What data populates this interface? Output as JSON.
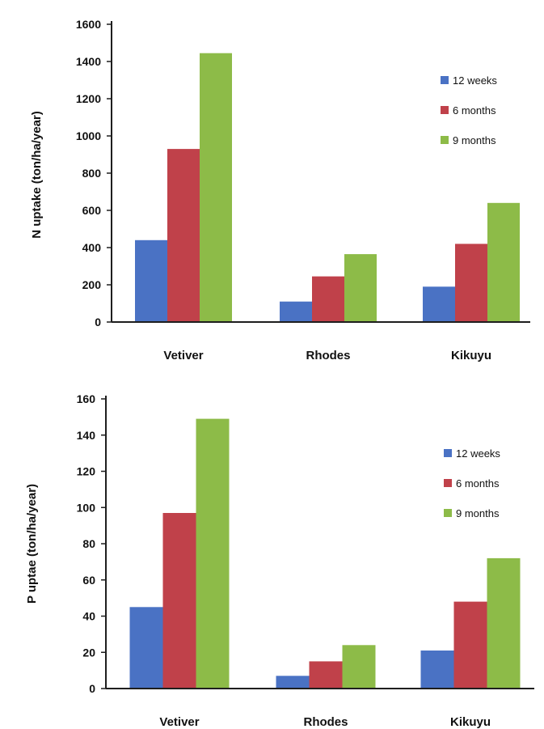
{
  "colors": {
    "series": [
      "#4a72c4",
      "#c0414a",
      "#8dbb48"
    ],
    "axis": "#1e1e1e",
    "text": "#111111"
  },
  "chart_data": [
    {
      "type": "bar",
      "title": "",
      "xlabel": "",
      "ylabel": "N uptake (ton/ha/year)",
      "categories": [
        "Vetiver",
        "Rhodes",
        "Kikuyu"
      ],
      "ylim": [
        0,
        1600
      ],
      "yticks": [
        0,
        200,
        400,
        600,
        800,
        1000,
        1200,
        1400,
        1600
      ],
      "grid": false,
      "legend_position": "right",
      "series": [
        {
          "name": "12 weeks",
          "values": [
            440,
            110,
            190
          ]
        },
        {
          "name": "6 months",
          "values": [
            930,
            245,
            420
          ]
        },
        {
          "name": "9 months",
          "values": [
            1445,
            365,
            640
          ]
        }
      ]
    },
    {
      "type": "bar",
      "title": "",
      "xlabel": "",
      "ylabel": "P uptae (ton/ha/year)",
      "categories": [
        "Vetiver",
        "Rhodes",
        "Kikuyu"
      ],
      "ylim": [
        0,
        160
      ],
      "yticks": [
        0,
        20,
        40,
        60,
        80,
        100,
        120,
        140,
        160
      ],
      "grid": false,
      "legend_position": "right",
      "series": [
        {
          "name": "12 weeks",
          "values": [
            45,
            7,
            21
          ]
        },
        {
          "name": "6 months",
          "values": [
            97,
            15,
            48
          ]
        },
        {
          "name": "9 months",
          "values": [
            149,
            24,
            72
          ]
        }
      ]
    }
  ]
}
